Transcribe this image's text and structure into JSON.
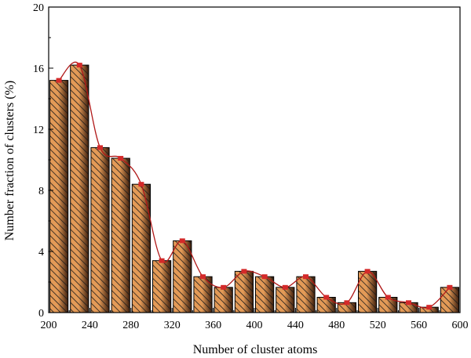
{
  "chart_data": {
    "type": "bar",
    "title": "",
    "xlabel": "Number of cluster atoms",
    "ylabel": "Number fraction of clusters (%)",
    "xlim": [
      200,
      600
    ],
    "ylim": [
      0,
      20
    ],
    "bin_width": 20,
    "xticks": [
      200,
      240,
      280,
      320,
      360,
      400,
      440,
      480,
      520,
      560,
      600
    ],
    "yticks": [
      0,
      4,
      8,
      12,
      16,
      20
    ],
    "bin_starts": [
      200,
      220,
      240,
      260,
      280,
      300,
      320,
      340,
      360,
      380,
      400,
      420,
      440,
      460,
      480,
      500,
      520,
      540,
      560,
      580
    ],
    "values": [
      15.2,
      16.2,
      10.8,
      10.1,
      8.4,
      3.4,
      4.7,
      2.35,
      1.65,
      2.7,
      2.35,
      1.65,
      2.35,
      1.0,
      0.65,
      2.7,
      1.0,
      0.65,
      0.35,
      1.65
    ],
    "grid": false,
    "legend": "none",
    "bar_fill_color": "#e39a57",
    "bar_dark_color": "#3b1d0c",
    "hatch_color": "#1a1a1a",
    "marker_color": "#d42a2a",
    "curve_color": "#b01818"
  }
}
